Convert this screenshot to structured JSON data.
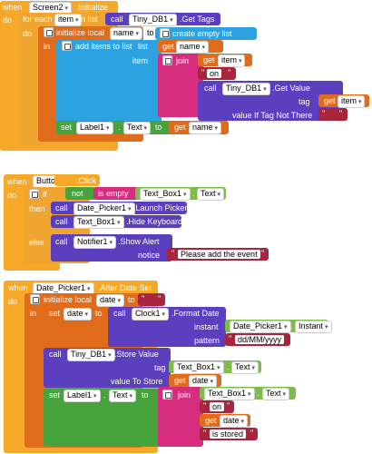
{
  "screen_init": {
    "when": "when",
    "component": "Screen2",
    "event": ".Initialize",
    "do": "do",
    "for_each": "for each",
    "item_var": "item",
    "in_list": "in list",
    "call": "call",
    "db": "Tiny_DB1",
    "get_tags": ".Get Tags",
    "init_local": "initialize local",
    "name_var": "name",
    "to": "to",
    "create_empty_list": "create empty list",
    "in": "in",
    "add_items": "add items to list",
    "list": "list",
    "get": "get",
    "item_label": "item",
    "join": "join",
    "on": "on",
    "get_value": ".Get Value",
    "tag": "tag",
    "value_if_not_there": "value If Tag Not There",
    "set": "set",
    "label": "Label1",
    "text_prop": "Text",
    "empty_string": " "
  },
  "button_click": {
    "when": "when",
    "component": "Button1",
    "event": ".Click",
    "do": "do",
    "if": "if",
    "then": "then",
    "else": "else",
    "not": "not",
    "is_empty": "is empty",
    "textbox": "Text_Box1",
    "text_prop": "Text",
    "call": "call",
    "date_picker": "Date_Picker1",
    "launch_picker": ".Launch Picker",
    "hide_keyboard": ".Hide Keyboard",
    "notifier": "Notifier1",
    "show_alert": ".Show Alert",
    "notice": "notice",
    "alert_text": "Please add the event"
  },
  "date_set": {
    "when": "when",
    "component": "Date_Picker1",
    "event": ".After Date Set",
    "do": "do",
    "init_local": "initialize local",
    "date_var": "date",
    "to": "to",
    "in": "in",
    "set": "set",
    "call": "call",
    "clock": "Clock1",
    "format_date": ".Format Date",
    "instant": "instant",
    "instant_prop": "Instant",
    "pattern": "pattern",
    "pattern_value": "dd/MM/yyyy",
    "db": "Tiny_DB1",
    "store_value": ".Store Value",
    "tag": "tag",
    "textbox": "Text_Box1",
    "text_prop": "Text",
    "value_to_store": "value To Store",
    "get": "get",
    "label": "Label1",
    "join": "join",
    "on": "on",
    "is_stored": "is stored",
    "empty_string": " "
  }
}
